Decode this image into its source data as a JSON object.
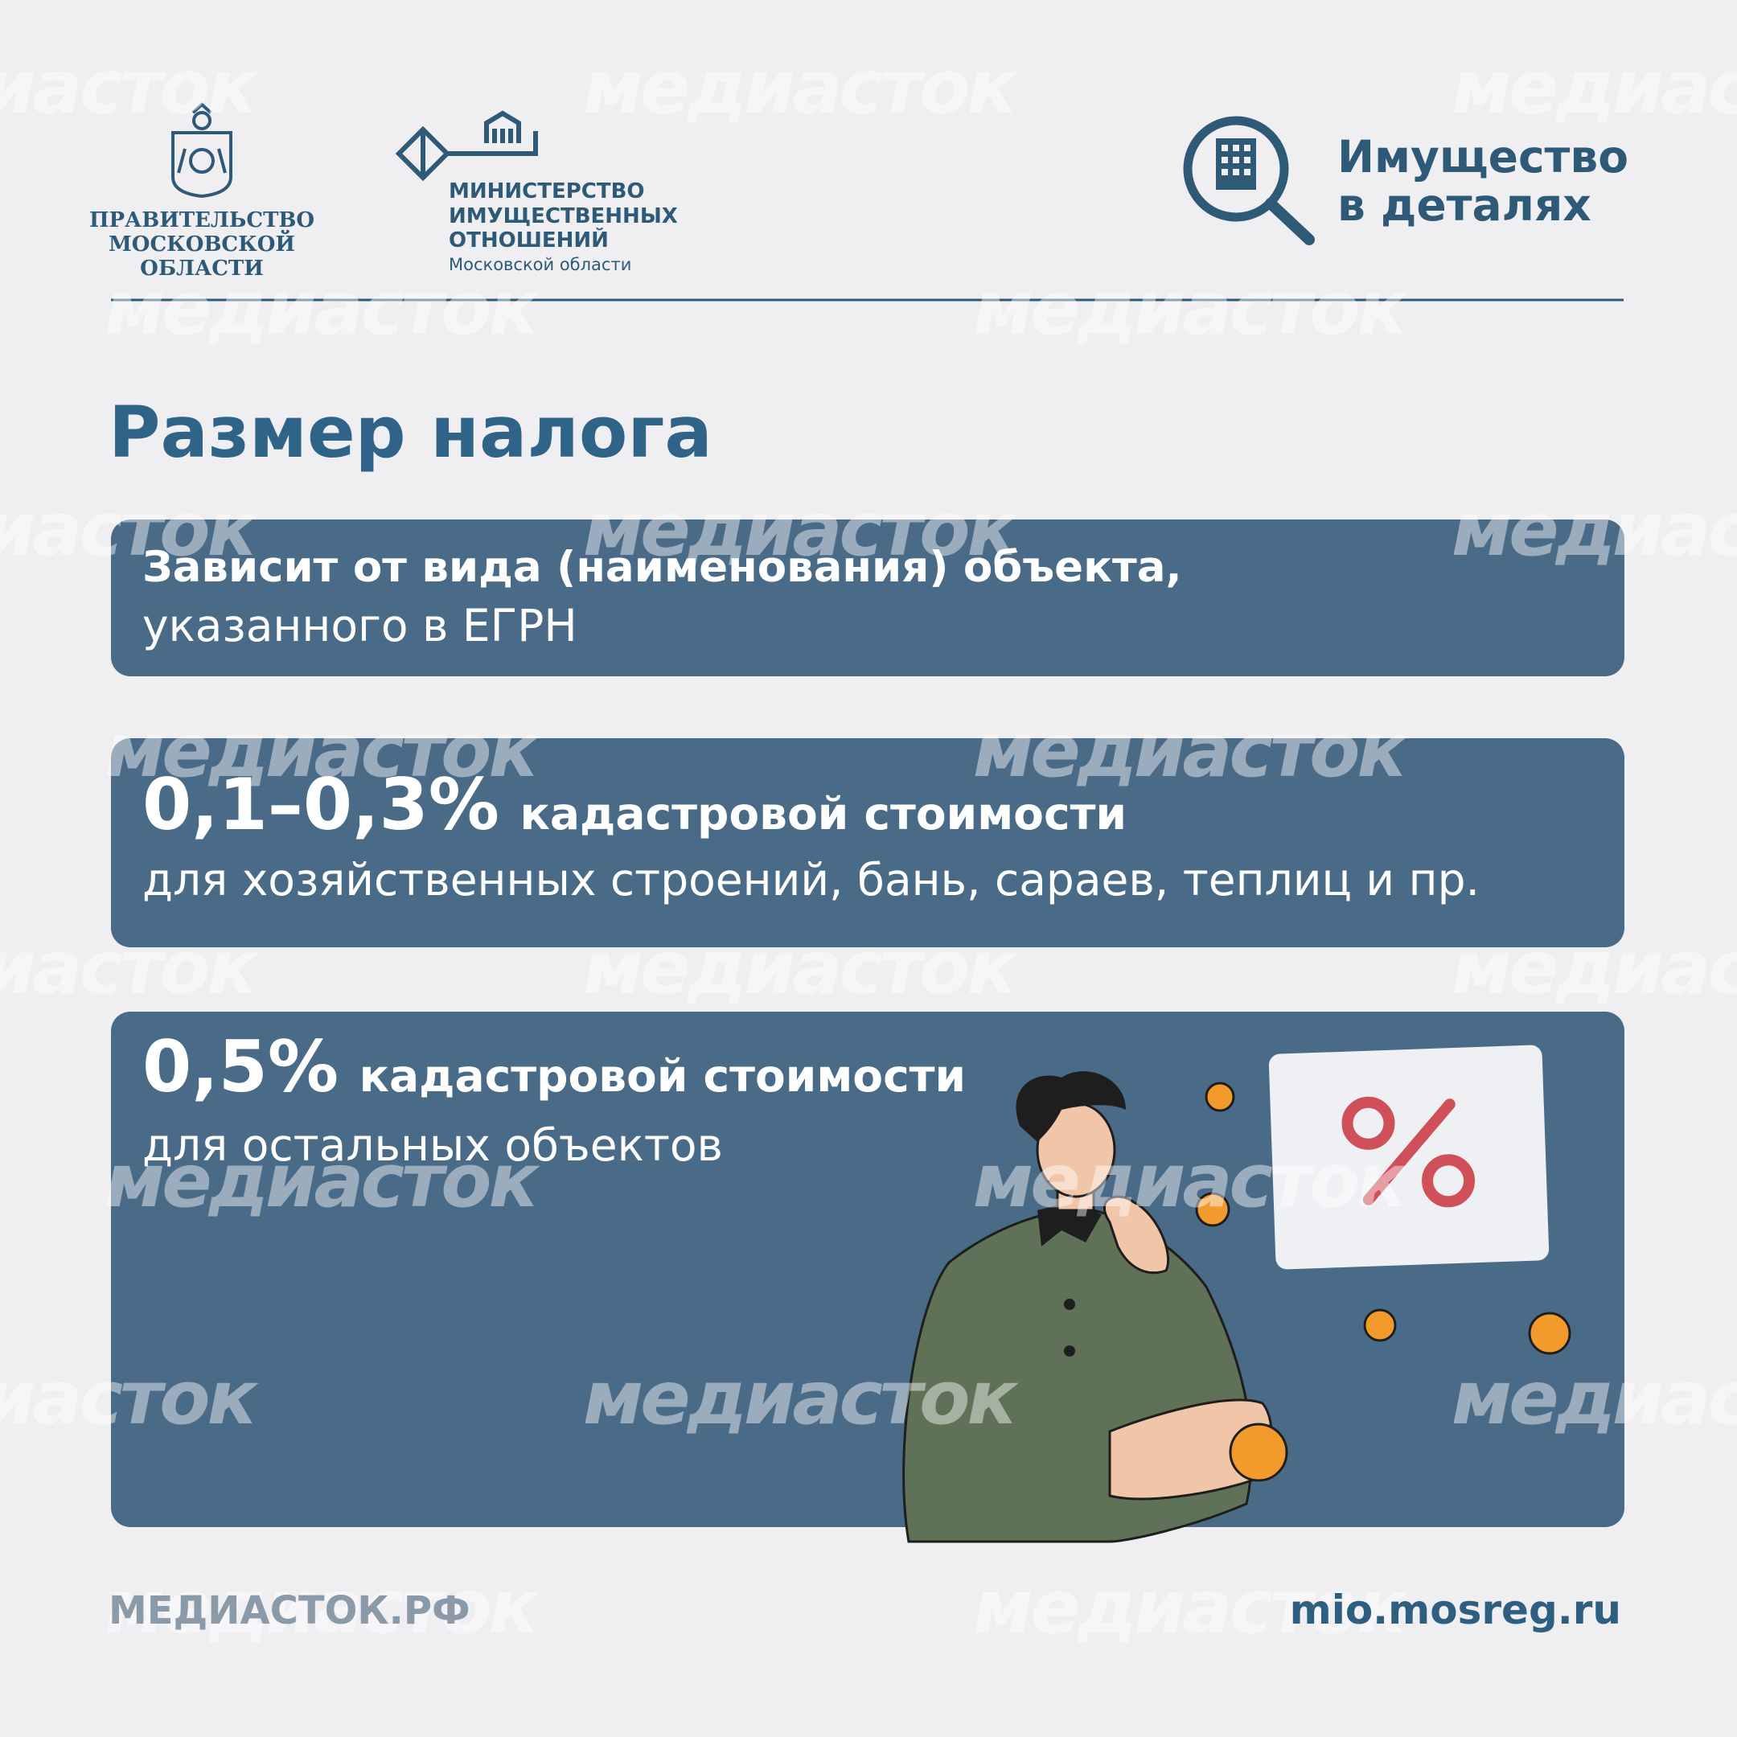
{
  "header": {
    "government": {
      "lines": [
        "ПРАВИТЕЛЬСТВО",
        "МОСКОВСКОЙ",
        "ОБЛАСТИ"
      ]
    },
    "ministry": {
      "lines": [
        "МИНИСТЕРСТВО",
        "ИМУЩЕСТВЕННЫХ",
        "ОТНОШЕНИЙ"
      ],
      "region": "Московской области"
    },
    "brand": {
      "lines": [
        "Имущество",
        "в деталях"
      ]
    }
  },
  "title": "Размер налога",
  "cards": [
    {
      "bold": "Зависит от вида (наименования) объекта,",
      "text": "указанного в ЕГРН"
    },
    {
      "rate": "0,1–0,3%",
      "bold": "кадастровой стоимости",
      "text": "для хозяйственных строений, бань, сараев, теплиц и пр."
    },
    {
      "rate": "0,5%",
      "bold": "кадастровой стоимости",
      "text": "для остальных объектов"
    }
  ],
  "footer": {
    "left": "МЕДИАСТОК.РФ",
    "right": "mio.mosreg.ru"
  },
  "watermark": "медиасток"
}
